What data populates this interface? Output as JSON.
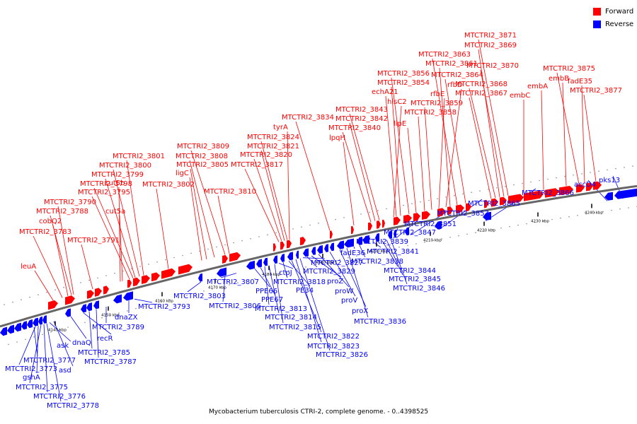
{
  "legend": {
    "forward_label": "Forward",
    "reverse_label": "Reverse",
    "forward_color": "#ff0000",
    "reverse_color": "#0000ff"
  },
  "caption": "Mycobacterium tuberculosis CTRI-2, complete genome. - 0..4398525",
  "colors": {
    "forward": "#ff0000",
    "reverse": "#0000ff",
    "backbone": "#666666"
  },
  "ticks": [
    "4140 kbp",
    "4150 kbp",
    "4160 kbp",
    "4170 kbp",
    "4180 kbp",
    "4190 kbp",
    "4200 kbp",
    "4210 kbp",
    "4220 kbp",
    "4230 kbp",
    "4240 kbp"
  ],
  "forward_labels": [
    "leuA",
    "MTCTRI2_3783",
    "cobQ2",
    "MTCTRI2_3788",
    "MTCTRI2_3790",
    "MTCTRI2_3791",
    "MTCTRI2_3795",
    "cut5b",
    "cut5a",
    "MTCTRI2_3798",
    "MTCTRI2_3799",
    "MTCTRI2_3800",
    "MTCTRI2_3801",
    "MTCTRI2_3802",
    "ligC",
    "MTCTRI2_3805",
    "MTCTRI2_3808",
    "MTCTRI2_3809",
    "MTCTRI2_3810",
    "MTCTRI2_3817",
    "MTCTRI2_3820",
    "MTCTRI2_3821",
    "MTCTRI2_3824",
    "tyrA",
    "MTCTRI2_3834",
    "lpqH",
    "MTCTRI2_3840",
    "MTCTRI2_3842",
    "MTCTRI2_3843",
    "hisC2",
    "echA21",
    "MTCTRI2_3854",
    "MTCTRI2_3856",
    "lipE",
    "MTCTRI2_3858",
    "MTCTRI2_3859",
    "rfbE",
    "rfbD",
    "MTCTRI2_3861",
    "MTCTRI2_3863",
    "MTCTRI2_3864",
    "MTCTRI2_3867",
    "MTCTRI2_3868",
    "MTCTRI2_3869",
    "MTCTRI2_3870",
    "MTCTRI2_3871",
    "embC",
    "embA",
    "embB",
    "MTCTRI2_3875",
    "fadE35",
    "MTCTRI2_3877"
  ],
  "reverse_labels": [
    "MTCTRI2_3777",
    "MTCTRI2_3773",
    "gshA",
    "MTCTRI2_3775",
    "MTCTRI2_3776",
    "MTCTRI2_3778",
    "ask",
    "asd",
    "dnaQ",
    "recR",
    "MTCTRI2_3785",
    "MTCTRI2_3787",
    "MTCTRI2_3789",
    "dnaZX",
    "MTCTRI2_3793",
    "MTCTRI2_3803",
    "MTCTRI2_3806",
    "MTCTRI2_3807",
    "PPE66",
    "PPE67",
    "MTCTRI2_3813",
    "MTCTRI2_3814",
    "MTCTRI2_3815",
    "ctpJ",
    "MTCTRI2_3818",
    "PE34",
    "MTCTRI2_3822",
    "MTCTRI2_3823",
    "MTCTRI2_3826",
    "MTCTRI2_3827",
    "MTCTRI2_3829",
    "proZ",
    "proW",
    "proV",
    "proX",
    "MTCTRI2_3836",
    "fadE36",
    "MTCTRI2_3838",
    "MTCTRI2_3839",
    "MTCTRI2_3841",
    "MTCTRI2_3844",
    "MTCTRI2_3845",
    "MTCTRI2_3846",
    "MTCTRI2_3847",
    "MTCTRI2_3851",
    "MTCTRI2_3857",
    "MTCTRI2_3865",
    "MTCTRI2_3866",
    "accD4",
    "pks13"
  ]
}
